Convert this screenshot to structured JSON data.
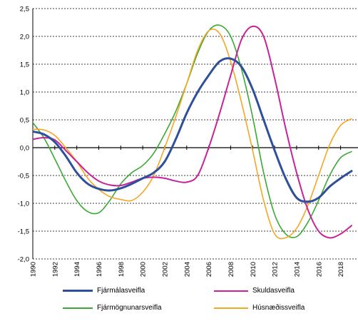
{
  "chart_data": {
    "type": "line",
    "title": "",
    "xlabel": "",
    "ylabel": "",
    "ylim": [
      -2.0,
      2.5
    ],
    "xlim": [
      1990,
      2019
    ],
    "y_ticks": [
      "2,5",
      "2,0",
      "1,5",
      "1,0",
      "0,5",
      "0,0",
      "-0,5",
      "-1,0",
      "-1,5",
      "-2,0"
    ],
    "y_tick_values": [
      2.5,
      2.0,
      1.5,
      1.0,
      0.5,
      0.0,
      -0.5,
      -1.0,
      -1.5,
      -2.0
    ],
    "x_ticks": [
      "1990",
      "1992",
      "1994",
      "1996",
      "1998",
      "2000",
      "2002",
      "2004",
      "2006",
      "2008",
      "2010",
      "2012",
      "2014",
      "2016",
      "2018"
    ],
    "grid": "horizontal dashed",
    "legend_position": "bottom",
    "series": [
      {
        "name": "Fjármálasveifla",
        "color": "#2E4F9A",
        "width": 3,
        "x": [
          1990,
          1991,
          1992,
          1993,
          1994,
          1995,
          1996,
          1997,
          1998,
          1999,
          2000,
          2001,
          2002,
          2003,
          2004,
          2005,
          2006,
          2007,
          2008,
          2009,
          2010,
          2011,
          2012,
          2013,
          2014,
          2015,
          2016,
          2017,
          2018,
          2019
        ],
        "values": [
          0.29,
          0.24,
          0.1,
          -0.15,
          -0.45,
          -0.65,
          -0.74,
          -0.77,
          -0.73,
          -0.65,
          -0.55,
          -0.45,
          -0.25,
          0.15,
          0.62,
          1.0,
          1.3,
          1.55,
          1.6,
          1.45,
          1.05,
          0.5,
          -0.05,
          -0.55,
          -0.9,
          -0.97,
          -0.9,
          -0.7,
          -0.55,
          -0.42
        ]
      },
      {
        "name": "Skuldasveifla",
        "color": "#C8219A",
        "width": 2,
        "x": [
          1990,
          1991,
          1992,
          1993,
          1994,
          1995,
          1996,
          1997,
          1998,
          1999,
          2000,
          2001,
          2002,
          2003,
          2004,
          2005,
          2006,
          2007,
          2008,
          2009,
          2010,
          2011,
          2012,
          2013,
          2014,
          2015,
          2016,
          2017,
          2018,
          2019
        ],
        "values": [
          0.15,
          0.18,
          0.14,
          -0.05,
          -0.25,
          -0.45,
          -0.6,
          -0.67,
          -0.68,
          -0.62,
          -0.55,
          -0.53,
          -0.55,
          -0.6,
          -0.62,
          -0.5,
          0.0,
          0.62,
          1.3,
          1.95,
          2.18,
          2.0,
          1.25,
          0.35,
          -0.45,
          -1.1,
          -1.5,
          -1.62,
          -1.55,
          -1.4
        ]
      },
      {
        "name": "Fjármögnunarsveifla",
        "color": "#3AA935",
        "width": 1.6,
        "x": [
          1990,
          1991,
          1992,
          1993,
          1994,
          1995,
          1996,
          1997,
          1998,
          1999,
          2000,
          2001,
          2002,
          2003,
          2004,
          2005,
          2006,
          2007,
          2008,
          2009,
          2010,
          2011,
          2012,
          2013,
          2014,
          2015,
          2016,
          2017,
          2018,
          2019
        ],
        "values": [
          0.45,
          0.18,
          -0.2,
          -0.6,
          -0.95,
          -1.15,
          -1.17,
          -0.95,
          -0.65,
          -0.45,
          -0.32,
          -0.1,
          0.25,
          0.65,
          1.15,
          1.7,
          2.1,
          2.2,
          2.0,
          1.4,
          0.55,
          -0.45,
          -1.2,
          -1.55,
          -1.6,
          -1.35,
          -0.95,
          -0.5,
          -0.18,
          -0.07
        ]
      },
      {
        "name": "Húsnæðissveifla",
        "color": "#F5A623",
        "width": 1.6,
        "x": [
          1990,
          1991,
          1992,
          1993,
          1994,
          1995,
          1996,
          1997,
          1998,
          1999,
          2000,
          2001,
          2002,
          2003,
          2004,
          2005,
          2006,
          2007,
          2008,
          2009,
          2010,
          2011,
          2012,
          2013,
          2014,
          2015,
          2016,
          2017,
          2018,
          2019
        ],
        "values": [
          0.33,
          0.32,
          0.22,
          0.0,
          -0.25,
          -0.55,
          -0.75,
          -0.88,
          -0.93,
          -0.95,
          -0.8,
          -0.5,
          0.0,
          0.55,
          1.15,
          1.75,
          2.1,
          2.05,
          1.55,
          0.8,
          -0.05,
          -0.95,
          -1.55,
          -1.62,
          -1.45,
          -1.05,
          -0.5,
          0.05,
          0.4,
          0.52
        ]
      }
    ]
  }
}
